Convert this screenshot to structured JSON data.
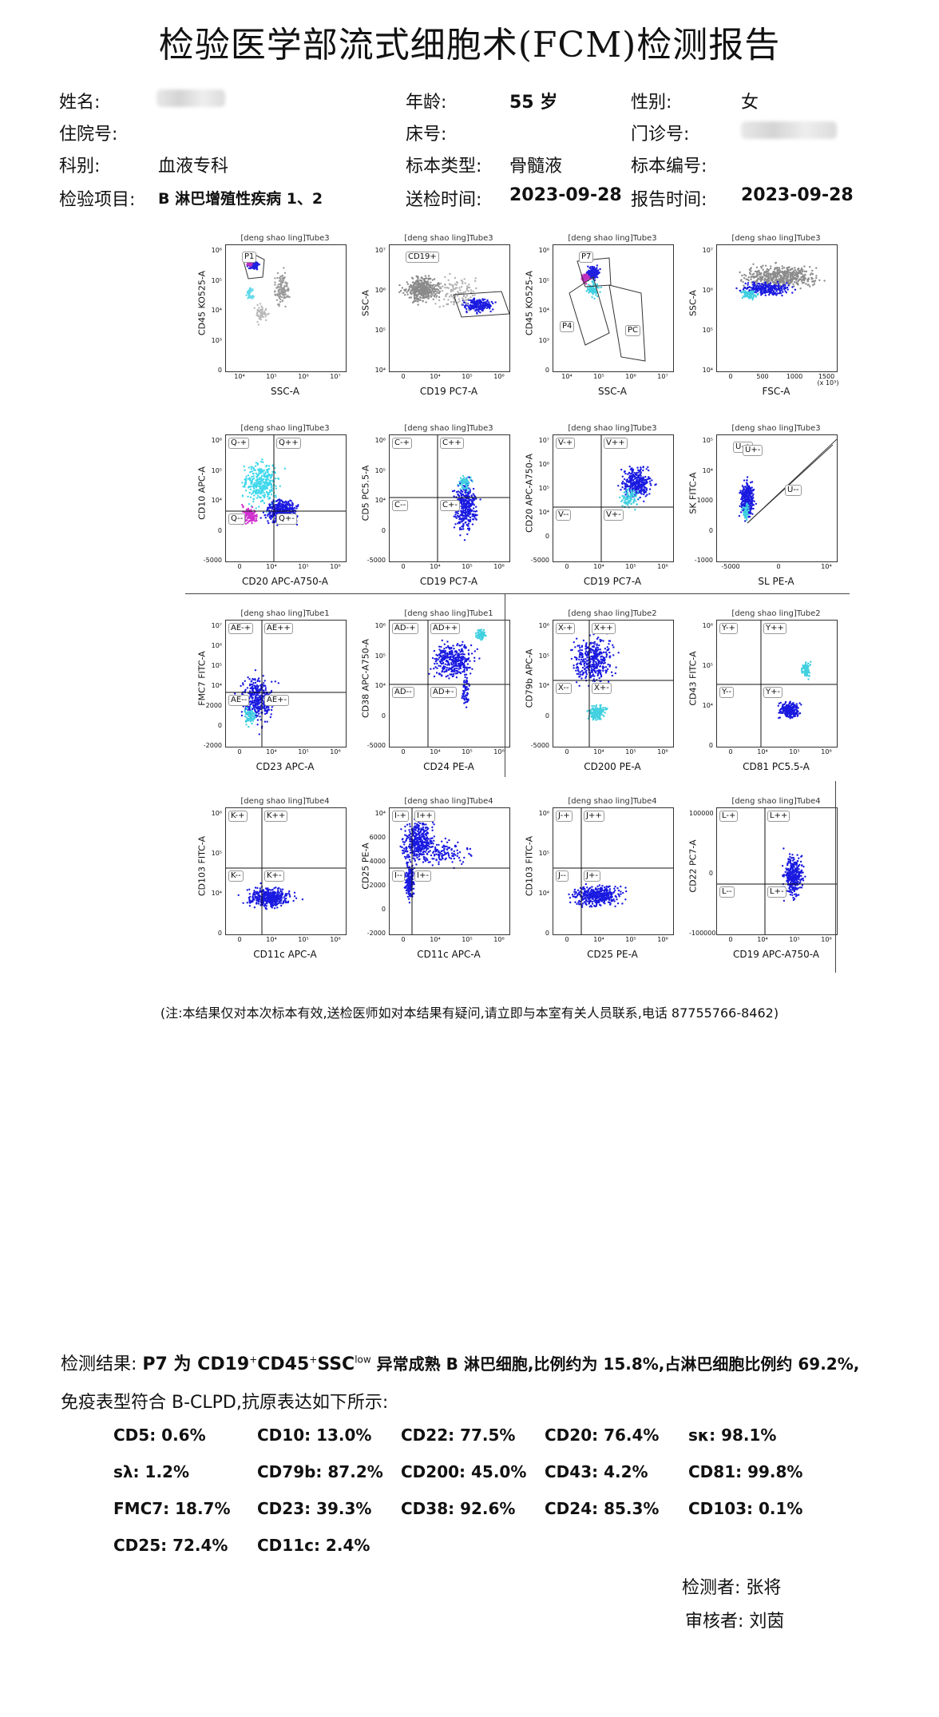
{
  "header": {
    "title": "检验医学部流式细胞术(FCM)检测报告"
  },
  "patient": {
    "name_label": "姓名:",
    "age_label": "年龄:",
    "age_value": "55 岁",
    "sex_label": "性别:",
    "sex_value": "女",
    "inpatient_label": "住院号:",
    "bed_label": "床号:",
    "outpatient_label": "门诊号:",
    "dept_label": "科别:",
    "dept_value": "血液专科",
    "sample_type_label": "标本类型:",
    "sample_type_value": "骨髓液",
    "sample_no_label": "标本编号:",
    "test_item_label": "检验项目:",
    "test_item_value": "B 淋巴增殖性疾病 1、2",
    "send_time_label": "送检时间:",
    "send_time_value": "2023-09-28",
    "report_time_label": "报告时间:",
    "report_time_value": "2023-09-28"
  },
  "plots": [
    {
      "tube": "[deng shao ling]Tube3",
      "x": "SSC-A",
      "y": "CD45 KO525-A",
      "gates": [
        "P1"
      ],
      "xticks": [
        "10⁴",
        "10⁵",
        "10⁶",
        "10⁷"
      ],
      "yticks": [
        "10⁶",
        "10⁵",
        "10⁴",
        "10³",
        "0"
      ]
    },
    {
      "tube": "[deng shao ling]Tube3",
      "x": "CD19 PC7-A",
      "y": "SSC-A",
      "gates": [
        "CD19+"
      ],
      "xticks": [
        "0",
        "10⁴",
        "10⁵",
        "10⁶"
      ],
      "yticks": [
        "10⁷",
        "10⁶",
        "10⁵",
        "10⁴"
      ]
    },
    {
      "tube": "[deng shao ling]Tube3",
      "x": "SSC-A",
      "y": "CD45 KO525-A",
      "gates": [
        "P7",
        "P4",
        "PC"
      ],
      "xticks": [
        "10⁴",
        "10⁵",
        "10⁶",
        "10⁷"
      ],
      "yticks": [
        "10⁶",
        "10⁵",
        "10⁴",
        "10³",
        "0"
      ]
    },
    {
      "tube": "[deng shao ling]Tube3",
      "x": "FSC-A",
      "y": "SSC-A",
      "gates": [],
      "xticks": [
        "0",
        "500",
        "1000",
        "1500"
      ],
      "yticks": [
        "10⁷",
        "10⁶",
        "10⁵",
        "10⁴"
      ],
      "xunit": "(x 10³)"
    },
    {
      "tube": "[deng shao ling]Tube3",
      "x": "CD20 APC-A750-A",
      "y": "CD10 APC-A",
      "gates": [
        "Q-+",
        "Q++",
        "Q--",
        "Q+-"
      ],
      "xticks": [
        "0",
        "10⁴",
        "10⁵",
        "10⁶"
      ],
      "yticks": [
        "10⁶",
        "10⁵",
        "10⁴",
        "0",
        "-5000"
      ]
    },
    {
      "tube": "[deng shao ling]Tube3",
      "x": "CD19 PC7-A",
      "y": "CD5 PC5.5-A",
      "gates": [
        "C-+",
        "C++",
        "C--",
        "C+-"
      ],
      "xticks": [
        "0",
        "10⁴",
        "10⁵",
        "10⁶"
      ],
      "yticks": [
        "10⁶",
        "10⁵",
        "10⁴",
        "0",
        "-5000"
      ]
    },
    {
      "tube": "[deng shao ling]Tube3",
      "x": "CD19 PC7-A",
      "y": "CD20 APC-A750-A",
      "gates": [
        "V-+",
        "V++",
        "V--",
        "V+-"
      ],
      "xticks": [
        "0",
        "10⁴",
        "10⁵",
        "10⁶"
      ],
      "yticks": [
        "10⁷",
        "10⁶",
        "10⁵",
        "10⁴",
        "0",
        "-5000"
      ]
    },
    {
      "tube": "[deng shao ling]Tube3",
      "x": "SL PE-A",
      "y": "SK FITC-A",
      "gates": [
        "U-+",
        "U--",
        "U+-"
      ],
      "xticks": [
        "-5000",
        "0",
        "10⁴"
      ],
      "yticks": [
        "10⁵",
        "10⁴",
        "1000",
        "0",
        "-1000"
      ]
    },
    {
      "tube": "[deng shao ling]Tube1",
      "x": "CD23 APC-A",
      "y": "FMC7 FITC-A",
      "gates": [
        "AE-+",
        "AE++",
        "AE--",
        "AE+-"
      ],
      "xticks": [
        "0",
        "10⁴",
        "10⁵",
        "10⁶"
      ],
      "yticks": [
        "10⁷",
        "10⁶",
        "10⁵",
        "10⁴",
        "2000",
        "0",
        "-2000"
      ]
    },
    {
      "tube": "[deng shao ling]Tube1",
      "x": "CD24 PE-A",
      "y": "CD38 APC-A750-A",
      "gates": [
        "AD-+",
        "AD++",
        "AD--",
        "AD+-"
      ],
      "xticks": [
        "0",
        "10⁴",
        "10⁵",
        "10⁶"
      ],
      "yticks": [
        "10⁶",
        "10⁵",
        "10⁴",
        "0",
        "-5000"
      ]
    },
    {
      "tube": "[deng shao ling]Tube2",
      "x": "CD200 PE-A",
      "y": "CD79b APC-A",
      "gates": [
        "X-+",
        "X++",
        "X--",
        "X+-"
      ],
      "xticks": [
        "0",
        "10⁴",
        "10⁵",
        "10⁶"
      ],
      "yticks": [
        "10⁶",
        "10⁵",
        "10⁴",
        "0",
        "-5000"
      ]
    },
    {
      "tube": "[deng shao ling]Tube2",
      "x": "CD81 PC5.5-A",
      "y": "CD43 FITC-A",
      "gates": [
        "Y-+",
        "Y++",
        "Y--",
        "Y+-"
      ],
      "xticks": [
        "0",
        "10⁴",
        "10⁵",
        "10⁶"
      ],
      "yticks": [
        "10⁶",
        "10⁵",
        "10⁴",
        "0"
      ]
    },
    {
      "tube": "[deng shao ling]Tube4",
      "x": "CD11c APC-A",
      "y": "CD103 FITC-A",
      "gates": [
        "K-+",
        "K++",
        "K--",
        "K+-"
      ],
      "xticks": [
        "0",
        "10⁴",
        "10⁵",
        "10⁶"
      ],
      "yticks": [
        "10⁶",
        "10⁵",
        "10⁴",
        "0"
      ]
    },
    {
      "tube": "[deng shao ling]Tube4",
      "x": "CD11c APC-A",
      "y": "CD25 PE-A",
      "gates": [
        "I-+",
        "I++",
        "I--",
        "I+-"
      ],
      "xticks": [
        "0",
        "10⁴",
        "10⁵",
        "10⁶"
      ],
      "yticks": [
        "10⁴",
        "6000",
        "4000",
        "2000",
        "0",
        "-2000"
      ]
    },
    {
      "tube": "[deng shao ling]Tube4",
      "x": "CD25 PE-A",
      "y": "CD103 FITC-A",
      "gates": [
        "J-+",
        "J++",
        "J--",
        "J+-"
      ],
      "xticks": [
        "0",
        "10⁴",
        "10⁵",
        "10⁶"
      ],
      "yticks": [
        "10⁶",
        "10⁵",
        "10⁴",
        "0"
      ]
    },
    {
      "tube": "[deng shao ling]Tube4",
      "x": "CD19 APC-A750-A",
      "y": "CD22 PC7-A",
      "gates": [
        "L-+",
        "L++",
        "L--",
        "L+-"
      ],
      "xticks": [
        "0",
        "10⁴",
        "10⁵",
        "10⁶"
      ],
      "yticks": [
        "100000",
        "0",
        "-100000"
      ]
    }
  ],
  "note": "(注:本结果仅对本次标本有效,送检医师如对本结果有疑问,请立即与本室有关人员联系,电话 87755766-8462)",
  "result": {
    "line1_a": "检测结果:",
    "line1_b": "P7 为 CD19",
    "sup1": "+",
    "line1_c": "CD45",
    "sup2": "+",
    "line1_d": "SSC",
    "sup3": "low",
    "line1_e": " 异常成熟 B 淋巴细胞,比例约为 15.8%,占淋巴细胞比例约 69.2%,",
    "line2": "免疫表型符合 B-CLPD,抗原表达如下所示:",
    "antigens": [
      "CD5: 0.6%",
      "CD10: 13.0%",
      "CD22: 77.5%",
      "CD20: 76.4%",
      "sκ: 98.1%",
      "sλ: 1.2%",
      "CD79b: 87.2%",
      "CD200: 45.0%",
      "CD43: 4.2%",
      "CD81: 99.8%",
      "FMC7: 18.7%",
      "CD23: 39.3%",
      "CD38: 92.6%",
      "CD24: 85.3%",
      "CD103: 0.1%",
      "CD25: 72.4%",
      "CD11c: 2.4%"
    ]
  },
  "signoff": {
    "tester": "检测者: 张将",
    "reviewer": "审核者: 刘茵"
  }
}
